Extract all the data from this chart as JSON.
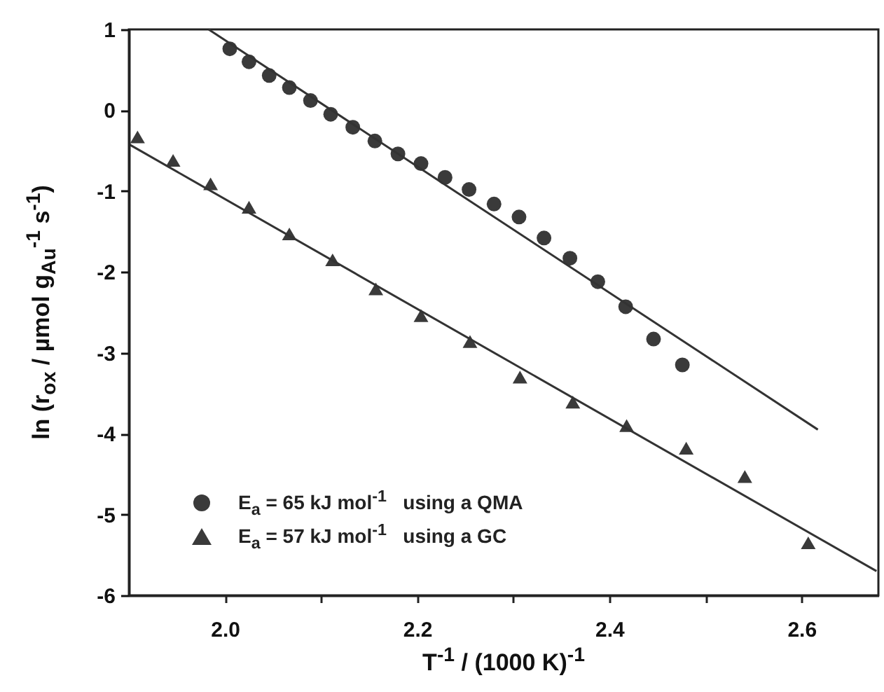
{
  "chart_data": {
    "type": "scatter",
    "xlabel": "T$^{-1}$ / (1000 K)$^{-1}$",
    "ylabel": "ln (r$_{ox}$ / µmol g$_{Au}$$^{-1}$ s$^{-1}$)",
    "xlim": [
      1.9,
      2.68
    ],
    "ylim": [
      -6,
      1
    ],
    "xticks": [
      {
        "value": 2,
        "label": "2.0"
      },
      {
        "value": 2.1,
        "label": null
      },
      2.2,
      {
        "value": 2.3,
        "label": null
      },
      2.4,
      {
        "value": 2.5,
        "label": null
      },
      2.6
    ],
    "yticks": [
      -6,
      -5,
      -4,
      -3,
      -2,
      -1,
      0,
      1
    ],
    "grid": false,
    "legend": "bottom left",
    "series": [
      {
        "name": "E$_{a}$ = 65 kJ mol$^{-1}$   using a QMA",
        "marker": "circle",
        "color": "#3a3a3a",
        "x": [
          2.005,
          2.025,
          2.046,
          2.067,
          2.089,
          2.11,
          2.133,
          2.156,
          2.18,
          2.204,
          2.229,
          2.254,
          2.28,
          2.306,
          2.332,
          2.359,
          2.388,
          2.417,
          2.446,
          2.476
        ],
        "values": [
          0.76,
          0.6,
          0.43,
          0.28,
          0.12,
          -0.05,
          -0.21,
          -0.38,
          -0.54,
          -0.66,
          -0.83,
          -0.98,
          -1.16,
          -1.32,
          -1.58,
          -1.83,
          -2.12,
          -2.43,
          -2.83,
          -3.15
        ]
      },
      {
        "name": "E$_{a}$ = 57 kJ mol$^{-1}$   using a GC",
        "marker": "triangle",
        "color": "#3a3a3a",
        "x": [
          1.909,
          1.946,
          1.985,
          2.025,
          2.067,
          2.112,
          2.157,
          2.204,
          2.255,
          2.307,
          2.362,
          2.418,
          2.48,
          2.541,
          2.607
        ],
        "values": [
          -0.33,
          -0.62,
          -0.91,
          -1.2,
          -1.53,
          -1.85,
          -2.21,
          -2.54,
          -2.86,
          -3.3,
          -3.61,
          -3.9,
          -4.18,
          -4.53,
          -5.35
        ]
      },
      {
        "type": "line",
        "color": "#333333",
        "x": [
          1.983,
          2.617
        ],
        "values": [
          1.0,
          -3.95
        ]
      },
      {
        "type": "line",
        "color": "#333333",
        "x": [
          1.9,
          2.678
        ],
        "values": [
          -0.42,
          -5.7
        ]
      }
    ]
  }
}
